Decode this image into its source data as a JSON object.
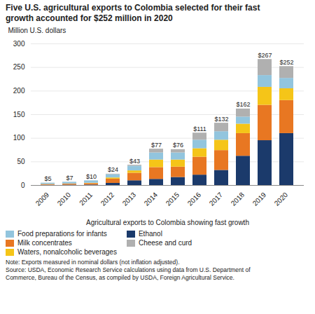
{
  "chart_data": {
    "type": "bar",
    "stacked": true,
    "title": "Five U.S. agricultural exports to Colombia selected for their fast\ngrowth accounted for $252 million in 2020",
    "ylabel": "Million U.S. dollars",
    "xlabel": "Agricultural exports to Colombia showing fast growth",
    "categories": [
      "2009",
      "2010",
      "2011",
      "2012",
      "2013",
      "2014",
      "2015",
      "2016",
      "2017",
      "2018",
      "2019",
      "2020"
    ],
    "series": [
      {
        "name": "Ethanol",
        "color": "#1B3A6B",
        "values": [
          0.5,
          0.8,
          1.0,
          4.5,
          10.0,
          13.0,
          17.0,
          22.0,
          32.0,
          62.0,
          95.0,
          110.0
        ]
      },
      {
        "name": "Milk concentrates",
        "color": "#E87722",
        "values": [
          1.5,
          2.0,
          3.0,
          9.0,
          16.0,
          25.0,
          22.0,
          38.0,
          42.0,
          48.0,
          75.0,
          70.0
        ]
      },
      {
        "name": "Waters, nonalcoholic beverages",
        "color": "#F5C518",
        "values": [
          0.3,
          0.5,
          0.8,
          2.5,
          5.0,
          16.0,
          15.0,
          18.0,
          22.0,
          20.0,
          38.0,
          25.0
        ]
      },
      {
        "name": "Food preparations for infants",
        "color": "#92C5DE",
        "values": [
          2.5,
          3.5,
          5.0,
          7.0,
          10.0,
          15.0,
          15.0,
          18.0,
          18.0,
          15.0,
          25.0,
          22.0
        ]
      },
      {
        "name": "Cheese and curd",
        "color": "#B0B0B0",
        "values": [
          0.2,
          0.2,
          0.2,
          1.0,
          2.0,
          8.0,
          7.0,
          15.0,
          18.0,
          17.0,
          34.0,
          25.0
        ]
      }
    ],
    "totals": [
      5,
      7,
      10,
      24,
      43,
      77,
      76,
      111,
      132,
      162,
      267,
      252
    ],
    "total_labels": [
      "$5",
      "$7",
      "$10",
      "$24",
      "$43",
      "$77",
      "$76",
      "$111",
      "$132",
      "$162",
      "$267",
      "$252"
    ],
    "legend": "bottom",
    "legend_order": [
      "Food preparations for infants",
      "Milk concentrates",
      "Waters, nonalcoholic beverages",
      "Ethanol",
      "Cheese and curd"
    ],
    "ylim": [
      0,
      300
    ],
    "yticks": [
      0,
      50,
      100,
      150,
      200,
      250,
      300
    ],
    "grid": true,
    "notes": [
      "Note: Exports measured in nominal dollars (not inflation adjusted).",
      "Source: USDA, Economic Research Service calculations using data from U.S. Department of",
      "Commerce, Bureau of the Census, as compiled by USDA, Foreign Agricultural Service."
    ]
  }
}
